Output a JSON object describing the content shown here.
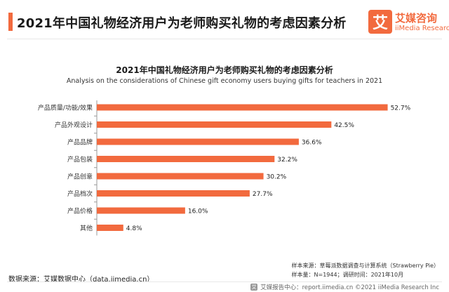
{
  "header": {
    "title": "2021年中国礼物经济用户为老师购买礼物的考虑因素分析",
    "accent_color": "#f26a3e"
  },
  "logo": {
    "mark": "艾",
    "name_cn": "艾媒咨询",
    "name_en": "iiMedia Research"
  },
  "chart_data": {
    "type": "bar",
    "orientation": "horizontal",
    "title": "2021年中国礼物经济用户为老师购买礼物的考虑因素分析",
    "subtitle": "Analysis on the considerations of Chinese gift economy users buying gifts for teachers in 2021",
    "categories": [
      "产品质量/功能/效果",
      "产品外观设计",
      "产品品牌",
      "产品包装",
      "产品创意",
      "产品档次",
      "产品价格",
      "其他"
    ],
    "values": [
      52.7,
      42.5,
      36.6,
      32.2,
      30.2,
      27.7,
      16.0,
      4.8
    ],
    "value_labels": [
      "52.7%",
      "42.5%",
      "36.6%",
      "32.2%",
      "30.2%",
      "27.7%",
      "16.0%",
      "4.8%"
    ],
    "unit": "%",
    "xlim": [
      0,
      60
    ],
    "grid": false,
    "legend": "none",
    "bar_color": "#f26a3e"
  },
  "footer": {
    "source": "数据来源：艾媒数据中心（data.iimedia.cn）",
    "sample_source": "样本来源：草莓派数据调查与计算系统（Strawberry Pie）",
    "sample_size": "样本量：N=1944；调研时间：2021年10月",
    "copyright": "艾媒报告中心：report.iimedia.cn    ©2021  iiMedia Research  Inc",
    "copyright_mark": "艾"
  }
}
